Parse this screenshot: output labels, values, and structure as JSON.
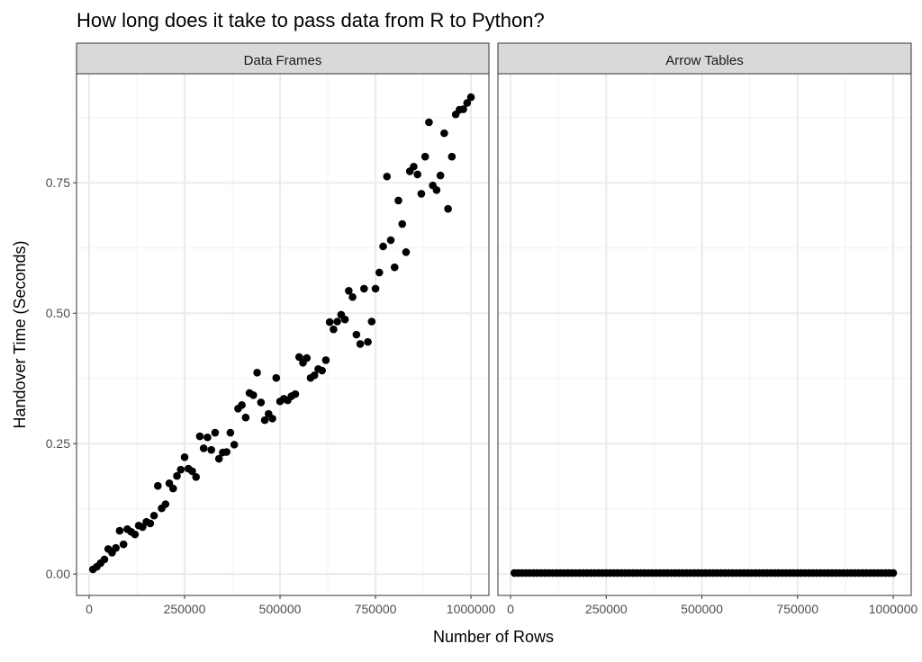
{
  "chart_data": {
    "type": "scatter",
    "title": "How long does it take to pass data from R to Python?",
    "xlabel": "Number of Rows",
    "ylabel": "Handover Time (Seconds)",
    "xlim": [
      -33000,
      1047000
    ],
    "ylim": [
      -0.041,
      0.959
    ],
    "x_ticks": [
      0,
      250000,
      500000,
      750000,
      1000000
    ],
    "x_tick_labels": [
      "0",
      "250000",
      "500000",
      "750000",
      "1000000"
    ],
    "y_ticks": [
      0,
      0.25,
      0.5,
      0.75
    ],
    "y_tick_labels": [
      "0.00",
      "0.25",
      "0.50",
      "0.75"
    ],
    "grid": true,
    "colors": {
      "point": "#000000",
      "strip": "#d9d9d9",
      "grid": "#ebebeb",
      "border": "#333333"
    },
    "panels": [
      {
        "name": "Data Frames",
        "x_start": 10000,
        "x_step": 10000,
        "y": [
          0.009,
          0.014,
          0.021,
          0.028,
          0.048,
          0.041,
          0.05,
          0.083,
          0.057,
          0.086,
          0.081,
          0.076,
          0.093,
          0.09,
          0.1,
          0.097,
          0.112,
          0.169,
          0.126,
          0.134,
          0.174,
          0.164,
          0.188,
          0.2,
          0.224,
          0.202,
          0.197,
          0.186,
          0.264,
          0.241,
          0.262,
          0.238,
          0.271,
          0.221,
          0.233,
          0.234,
          0.271,
          0.248,
          0.317,
          0.324,
          0.3,
          0.347,
          0.343,
          0.386,
          0.329,
          0.295,
          0.307,
          0.298,
          0.376,
          0.331,
          0.336,
          0.333,
          0.341,
          0.345,
          0.416,
          0.405,
          0.414,
          0.376,
          0.381,
          0.393,
          0.39,
          0.41,
          0.483,
          0.469,
          0.484,
          0.497,
          0.488,
          0.543,
          0.531,
          0.459,
          0.441,
          0.547,
          0.445,
          0.484,
          0.547,
          0.578,
          0.628,
          0.762,
          0.64,
          0.588,
          0.716,
          0.671,
          0.617,
          0.772,
          0.781,
          0.766,
          0.729,
          0.8,
          0.866,
          0.745,
          0.736,
          0.764,
          0.845,
          0.7,
          0.8,
          0.881,
          0.89,
          0.891,
          0.903,
          0.914
        ]
      },
      {
        "name": "Arrow Tables",
        "x_start": 10000,
        "x_step": 10000,
        "constant_y": 0.002,
        "count": 100
      }
    ]
  }
}
